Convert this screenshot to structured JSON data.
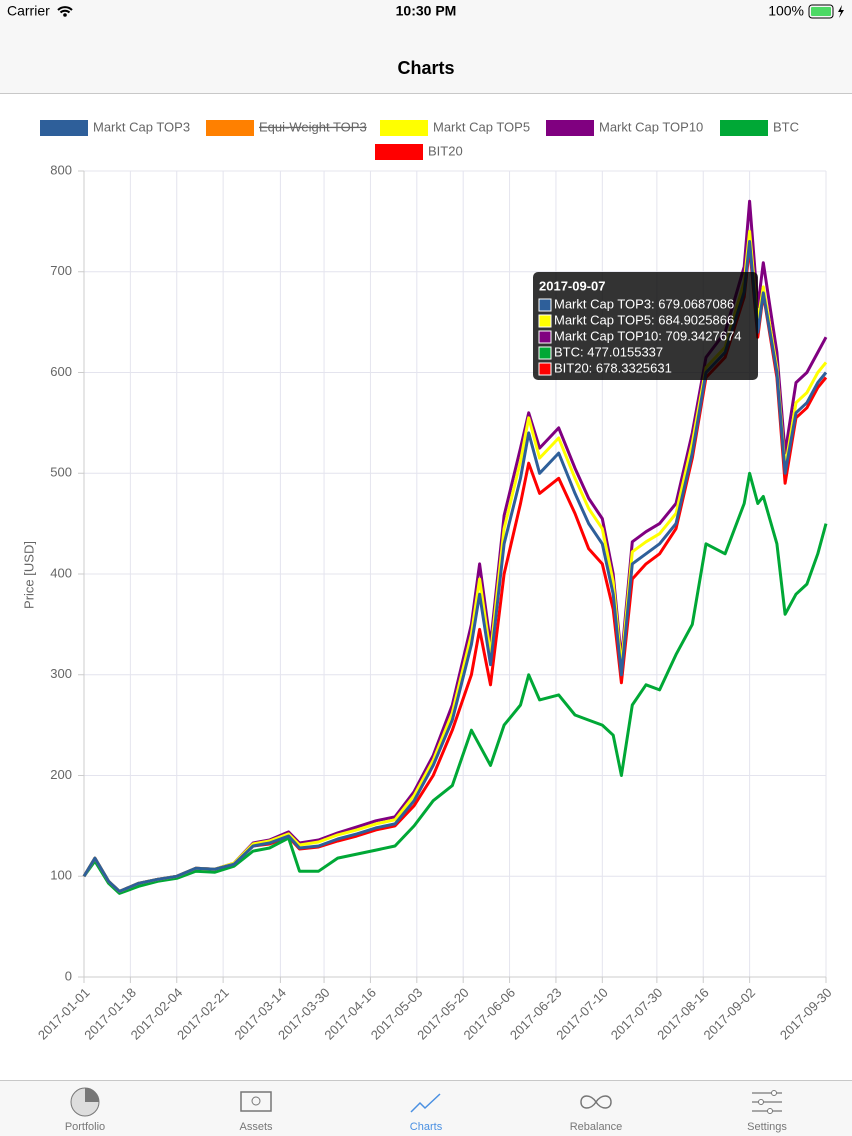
{
  "status_bar": {
    "carrier": "Carrier",
    "time": "10:30 PM",
    "battery": "100%"
  },
  "nav": {
    "title": "Charts"
  },
  "tabs": [
    "Portfolio",
    "Assets",
    "Charts",
    "Rebalance",
    "Settings"
  ],
  "chart_data": {
    "type": "line",
    "y_label": "Price [USD]",
    "x": [
      "2017-01-01",
      "2017-01-05",
      "2017-01-10",
      "2017-01-14",
      "2017-01-21",
      "2017-01-28",
      "2017-02-04",
      "2017-02-11",
      "2017-02-18",
      "2017-02-25",
      "2017-03-04",
      "2017-03-10",
      "2017-03-17",
      "2017-03-21",
      "2017-03-28",
      "2017-04-04",
      "2017-04-11",
      "2017-04-18",
      "2017-04-25",
      "2017-05-02",
      "2017-05-09",
      "2017-05-16",
      "2017-05-23",
      "2017-05-26",
      "2017-05-30",
      "2017-06-04",
      "2017-06-10",
      "2017-06-13",
      "2017-06-17",
      "2017-06-24",
      "2017-06-30",
      "2017-07-05",
      "2017-07-10",
      "2017-07-14",
      "2017-07-17",
      "2017-07-21",
      "2017-07-26",
      "2017-07-31",
      "2017-08-06",
      "2017-08-12",
      "2017-08-17",
      "2017-08-24",
      "2017-08-31",
      "2017-09-02",
      "2017-09-05",
      "2017-09-07",
      "2017-09-12",
      "2017-09-15",
      "2017-09-19",
      "2017-09-23",
      "2017-09-27",
      "2017-09-30"
    ],
    "series": [
      {
        "name": "Markt Cap TOP3",
        "color": "#2e5f9a",
        "values": [
          100,
          118,
          95,
          85,
          93,
          97,
          100,
          108,
          107,
          112,
          130,
          133,
          140,
          128,
          130,
          137,
          142,
          148,
          152,
          175,
          210,
          255,
          330,
          380,
          310,
          430,
          495,
          540,
          500,
          520,
          480,
          450,
          430,
          380,
          300,
          410,
          420,
          430,
          450,
          520,
          600,
          620,
          680,
          730,
          640,
          679,
          600,
          500,
          560,
          570,
          590,
          600
        ]
      },
      {
        "name": "Equi-Weight TOP3",
        "color": "#ff8000",
        "hidden": true,
        "values": [
          null,
          null,
          null,
          null,
          null,
          null,
          null,
          null,
          null,
          null,
          null,
          null,
          null,
          null,
          null,
          null,
          null,
          null,
          null,
          null,
          null,
          null,
          null,
          null,
          null,
          null,
          null,
          null,
          null,
          null,
          null,
          null,
          null,
          null,
          null,
          null,
          null,
          null,
          null,
          null,
          null,
          null,
          null,
          null,
          null,
          null,
          null,
          null,
          null,
          null,
          null,
          null
        ]
      },
      {
        "name": "Markt Cap TOP5",
        "color": "#ffff00",
        "values": [
          100,
          118,
          95,
          85,
          93,
          97,
          100,
          108,
          107,
          113,
          132,
          135,
          142,
          131,
          134,
          141,
          146,
          152,
          156,
          180,
          215,
          262,
          340,
          395,
          320,
          445,
          512,
          555,
          515,
          535,
          495,
          465,
          445,
          392,
          308,
          422,
          432,
          440,
          460,
          530,
          605,
          625,
          690,
          740,
          650,
          685,
          605,
          505,
          570,
          580,
          600,
          610
        ]
      },
      {
        "name": "Markt Cap TOP10",
        "color": "#800080",
        "values": [
          100,
          118,
          95,
          85,
          93,
          97,
          100,
          108,
          107,
          113,
          133,
          136,
          144,
          133,
          136,
          143,
          149,
          155,
          159,
          184,
          220,
          270,
          350,
          410,
          330,
          458,
          525,
          560,
          525,
          545,
          505,
          475,
          455,
          400,
          315,
          432,
          442,
          450,
          470,
          540,
          615,
          640,
          705,
          770,
          665,
          709,
          620,
          520,
          590,
          600,
          620,
          635
        ]
      },
      {
        "name": "BTC",
        "color": "#00a836",
        "values": [
          100,
          115,
          93,
          83,
          90,
          95,
          98,
          105,
          104,
          110,
          125,
          128,
          138,
          105,
          105,
          118,
          122,
          126,
          130,
          150,
          175,
          190,
          245,
          230,
          210,
          250,
          270,
          300,
          275,
          280,
          260,
          255,
          250,
          240,
          200,
          270,
          290,
          285,
          320,
          350,
          430,
          420,
          470,
          500,
          470,
          477,
          430,
          360,
          380,
          390,
          420,
          450
        ]
      },
      {
        "name": "BIT20",
        "color": "#ff0000",
        "values": [
          100,
          118,
          95,
          85,
          93,
          97,
          100,
          108,
          107,
          112,
          130,
          132,
          139,
          127,
          129,
          135,
          140,
          146,
          150,
          170,
          200,
          245,
          300,
          345,
          290,
          400,
          470,
          510,
          480,
          495,
          460,
          425,
          410,
          365,
          292,
          395,
          410,
          420,
          445,
          515,
          595,
          615,
          675,
          725,
          635,
          678,
          595,
          490,
          555,
          565,
          585,
          595
        ]
      }
    ],
    "xlim": [
      "2017-01-01",
      "2017-09-30"
    ],
    "xticks": [
      "2017-01-01",
      "2017-01-18",
      "2017-02-04",
      "2017-02-21",
      "2017-03-14",
      "2017-03-30",
      "2017-04-16",
      "2017-05-03",
      "2017-05-20",
      "2017-06-06",
      "2017-06-23",
      "2017-07-10",
      "2017-07-30",
      "2017-08-16",
      "2017-09-02",
      "2017-09-30"
    ],
    "ylim": [
      0,
      800
    ],
    "yticks": [
      0,
      100,
      200,
      300,
      400,
      500,
      600,
      700,
      800
    ],
    "grid": true,
    "tooltip": {
      "title": "2017-09-07",
      "items": [
        {
          "series": 0,
          "text": "Markt Cap TOP3: 679.0687086"
        },
        {
          "series": 2,
          "text": "Markt Cap TOP5: 684.9025866"
        },
        {
          "series": 3,
          "text": "Markt Cap TOP10: 709.3427674"
        },
        {
          "series": 4,
          "text": "BTC: 477.0155337"
        },
        {
          "series": 5,
          "text": "BIT20: 678.3325631"
        }
      ]
    }
  }
}
